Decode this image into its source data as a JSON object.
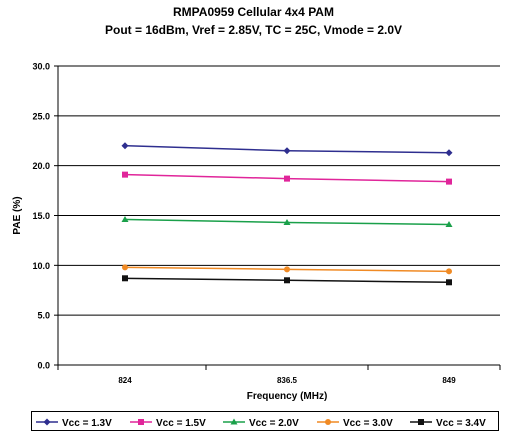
{
  "chart_data": {
    "type": "line",
    "title": "RMPA0959 Cellular 4x4 PAM",
    "subtitle": "Pout = 16dBm, Vref = 2.85V,  TC = 25C, Vmode = 2.0V",
    "xlabel": "Frequency (MHz)",
    "ylabel": "PAE (%)",
    "categories": [
      "824",
      "836.5",
      "849"
    ],
    "ylim": [
      0,
      30
    ],
    "yticks": [
      "0.0",
      "5.0",
      "10.0",
      "15.0",
      "20.0",
      "25.0",
      "30.0"
    ],
    "grid": true,
    "legend_position": "bottom",
    "series": [
      {
        "name": "Vcc = 1.3V",
        "values": [
          22.0,
          21.5,
          21.3
        ],
        "color": "#2e2e8f",
        "marker": "diamond"
      },
      {
        "name": "Vcc = 1.5V",
        "values": [
          19.1,
          18.7,
          18.4
        ],
        "color": "#e0259a",
        "marker": "square"
      },
      {
        "name": "Vcc = 2.0V",
        "values": [
          14.6,
          14.3,
          14.1
        ],
        "color": "#1aa04a",
        "marker": "triangle"
      },
      {
        "name": "Vcc = 3.0V",
        "values": [
          9.8,
          9.6,
          9.4
        ],
        "color": "#f08a24",
        "marker": "circle"
      },
      {
        "name": "Vcc = 3.4V",
        "values": [
          8.7,
          8.5,
          8.3
        ],
        "color": "#111111",
        "marker": "square"
      }
    ]
  }
}
